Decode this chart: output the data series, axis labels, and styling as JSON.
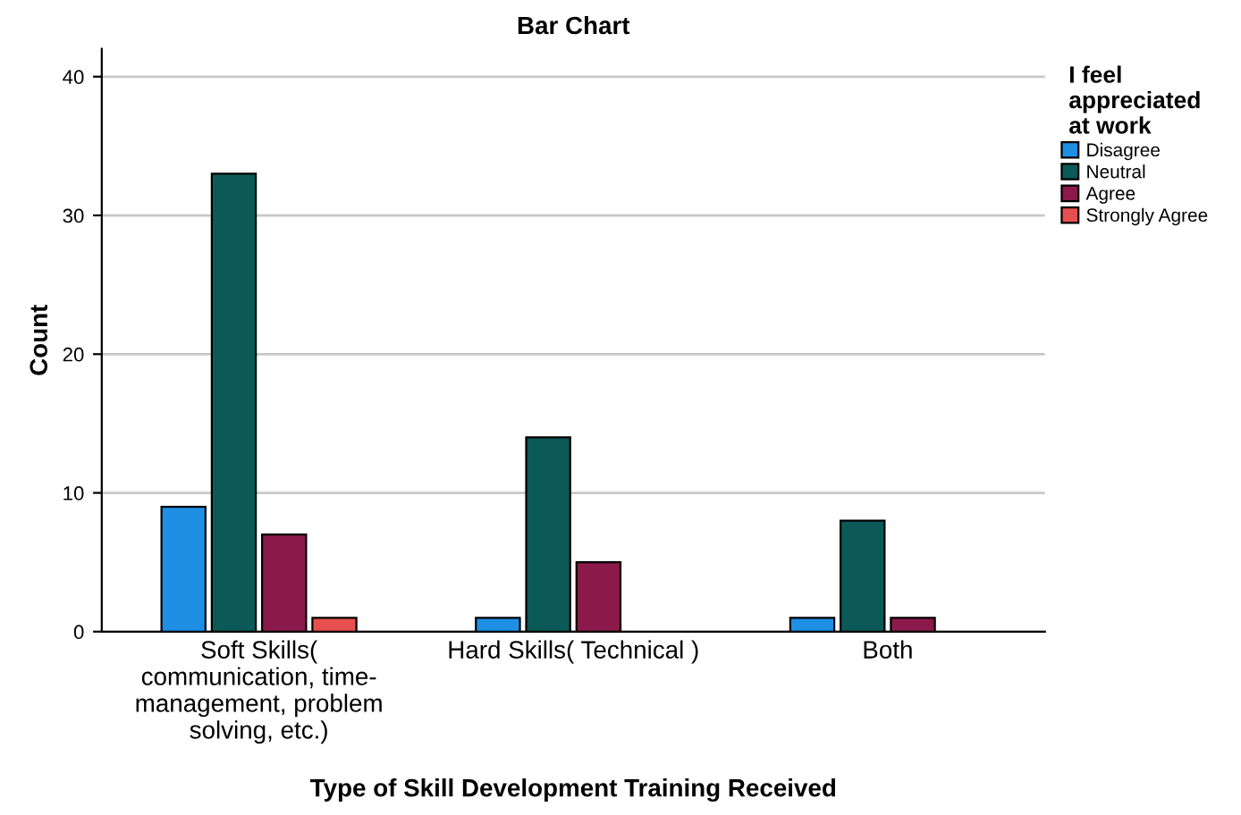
{
  "chart_data": {
    "type": "bar",
    "title": "Bar Chart",
    "xlabel": "Type of Skill Development Training Received",
    "ylabel": "Count",
    "legend_title": "I feel\nappreciated\nat work",
    "categories": [
      "Soft Skills(\ncommunication, time-\nmanagement, problem\nsolving, etc.)",
      "Hard Skills( Technical )",
      "Both"
    ],
    "series": [
      {
        "name": "Disagree",
        "color": "#1f8fe6",
        "values": [
          9,
          1,
          1
        ]
      },
      {
        "name": "Neutral",
        "color": "#0b5a57",
        "values": [
          33,
          14,
          8
        ]
      },
      {
        "name": "Agree",
        "color": "#8b1a4a",
        "values": [
          7,
          5,
          1
        ]
      },
      {
        "name": "Strongly Agree",
        "color": "#e8504f",
        "values": [
          1,
          null,
          null
        ]
      }
    ],
    "ylim": [
      0,
      42
    ],
    "yticks": [
      0,
      10,
      20,
      30,
      40
    ],
    "grid": "y",
    "legend": "top right"
  }
}
